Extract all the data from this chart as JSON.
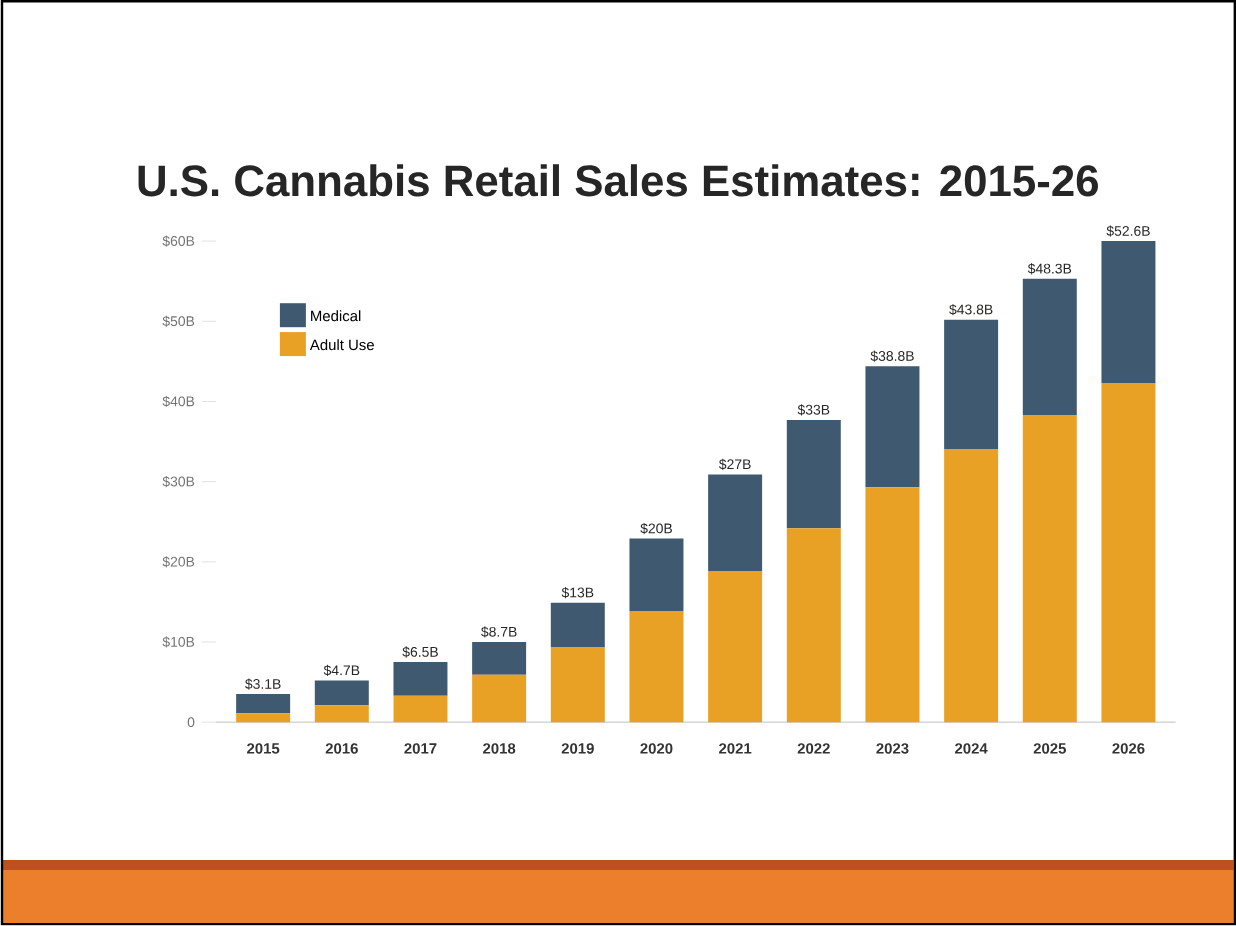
{
  "chart_data": {
    "type": "bar",
    "title": "U.S. Cannabis Retail Sales Estimates: 2015-26",
    "categories": [
      "2015",
      "2016",
      "2017",
      "2018",
      "2019",
      "2020",
      "2021",
      "2022",
      "2023",
      "2024",
      "2025",
      "2026"
    ],
    "stacked": true,
    "series": [
      {
        "name": "Adult Use",
        "color": "#e8a025",
        "values": [
          1.1,
          2.1,
          3.3,
          5.9,
          9.3,
          13.8,
          18.8,
          24.2,
          29.3,
          34.0,
          38.3,
          42.3
        ]
      },
      {
        "name": "Medical",
        "color": "#3f5a70",
        "values": [
          2.4,
          3.1,
          4.2,
          4.1,
          5.6,
          9.1,
          12.1,
          13.5,
          15.1,
          16.2,
          17.0,
          17.7
        ]
      }
    ],
    "annotations": [
      {
        "text": "$3.1B",
        "x": "2015",
        "y": 3.5
      },
      {
        "text": "$4.7B",
        "x": "2016",
        "y": 5.2
      },
      {
        "text": "$6.5B",
        "x": "2017",
        "y": 7.5
      },
      {
        "text": "$8.7B",
        "x": "2018",
        "y": 10.0
      },
      {
        "text": "$13B",
        "x": "2019",
        "y": 14.9
      },
      {
        "text": "$20B",
        "x": "2020",
        "y": 22.9
      },
      {
        "text": "$27B",
        "x": "2021",
        "y": 30.9
      },
      {
        "text": "$33B",
        "x": "2022",
        "y": 37.7
      },
      {
        "text": "$38.8B",
        "x": "2023",
        "y": 44.4
      },
      {
        "text": "$43.8B",
        "x": "2024",
        "y": 50.2
      },
      {
        "text": "$48.3B",
        "x": "2025",
        "y": 55.3
      },
      {
        "text": "$52.6B",
        "x": "2026",
        "y": 60.0
      }
    ],
    "ylim": [
      0,
      60
    ],
    "yticks": [
      0,
      {
        "value": 10,
        "label": "$10B"
      },
      {
        "value": 20,
        "label": "$20B"
      },
      {
        "value": 30,
        "label": "$30B"
      },
      {
        "value": 40,
        "label": "$40B"
      },
      {
        "value": 50,
        "label": "$50B"
      },
      {
        "value": 60,
        "label": "$60B"
      }
    ],
    "legend": "top left",
    "grid": false
  }
}
